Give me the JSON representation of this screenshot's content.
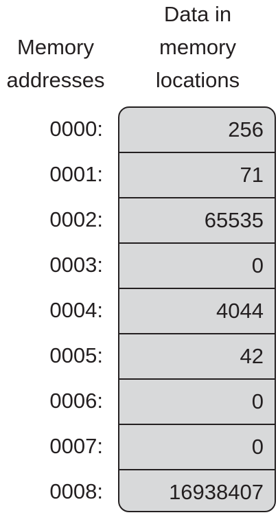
{
  "headers": {
    "addresses": [
      "Memory",
      "addresses"
    ],
    "data": [
      "Data in",
      "memory",
      "locations"
    ]
  },
  "colors": {
    "cell_fill": "#d8d9da",
    "stroke": "#231f20",
    "text": "#231f20"
  },
  "memory": [
    {
      "address": "0000:",
      "value": "256"
    },
    {
      "address": "0001:",
      "value": "71"
    },
    {
      "address": "0002:",
      "value": "65535"
    },
    {
      "address": "0003:",
      "value": "0"
    },
    {
      "address": "0004:",
      "value": "4044"
    },
    {
      "address": "0005:",
      "value": "42"
    },
    {
      "address": "0006:",
      "value": "0"
    },
    {
      "address": "0007:",
      "value": "0"
    },
    {
      "address": "0008:",
      "value": "16938407"
    }
  ]
}
